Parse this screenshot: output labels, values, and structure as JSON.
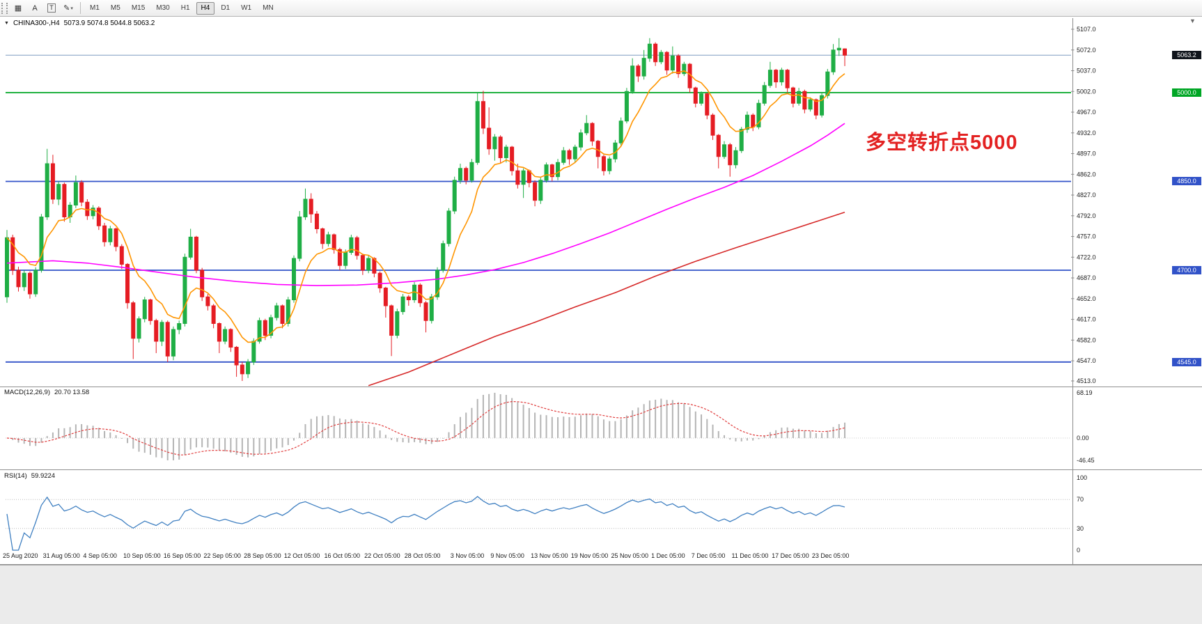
{
  "toolbar": {
    "tools": [
      {
        "name": "chart-grid-icon",
        "glyph": "▦"
      },
      {
        "name": "cursor-tool-icon",
        "glyph": "A"
      },
      {
        "name": "text-tool-icon",
        "glyph": "T",
        "boxed": true
      },
      {
        "name": "draw-tool-icon",
        "glyph": "✎",
        "caret": "▾"
      }
    ],
    "timeframes": [
      "M1",
      "M5",
      "M15",
      "M30",
      "H1",
      "H4",
      "D1",
      "W1",
      "MN"
    ],
    "active_timeframe": "H4"
  },
  "chart": {
    "collapse_icon": "▼",
    "symbol_period": "CHINA300-,H4",
    "ohlc_readout": "5073.9 5074.8 5044.8 5063.2",
    "annotation_text": "多空转折点5000",
    "current_price_label": "5063.2",
    "shift_marker": "▼"
  },
  "macd_panel": {
    "label": "MACD(12,26,9)",
    "values": "20.70 13.58",
    "tick_labels": [
      "68.19",
      "0.00",
      "-46.45"
    ]
  },
  "rsi_panel": {
    "label": "RSI(14)",
    "value": "59.9224",
    "tick_labels": [
      "100",
      "70",
      "30",
      "0"
    ]
  },
  "chart_data": {
    "type": "candlestick",
    "symbol": "CHINA300-",
    "timeframe": "H4",
    "title": "CHINA300-,H4 5073.9 5074.8 5044.8 5063.2",
    "price_axis": {
      "min": 4513,
      "max": 5107,
      "tick_step": 35
    },
    "y_tick_labels": [
      "5107.0",
      "5072.0",
      "5037.0",
      "5002.0",
      "4967.0",
      "4932.0",
      "4897.0",
      "4862.0",
      "4827.0",
      "4792.0",
      "4757.0",
      "4722.0",
      "4687.0",
      "4652.0",
      "4617.0",
      "4582.0",
      "4547.0",
      "4513.0"
    ],
    "x_labels": [
      "25 Aug 2020",
      "31 Aug 05:00",
      "4 Sep 05:00",
      "10 Sep 05:00",
      "16 Sep 05:00",
      "22 Sep 05:00",
      "28 Sep 05:00",
      "12 Oct 05:00",
      "16 Oct 05:00",
      "22 Oct 05:00",
      "28 Oct 05:00",
      "3 Nov 05:00",
      "9 Nov 05:00",
      "13 Nov 05:00",
      "19 Nov 05:00",
      "25 Nov 05:00",
      "1 Dec 05:00",
      "7 Dec 05:00",
      "11 Dec 05:00",
      "17 Dec 05:00",
      "23 Dec 05:00"
    ],
    "x_label_indices": [
      0,
      7,
      14,
      21,
      28,
      35,
      42,
      49,
      56,
      63,
      70,
      78,
      85,
      92,
      99,
      106,
      113,
      120,
      127,
      134,
      141
    ],
    "current_price": 5063.2,
    "levels": [
      {
        "price": 5000.0,
        "label": "5000.0",
        "color": "#00a625"
      },
      {
        "price": 4850.0,
        "label": "4850.0",
        "color": "#3152c8"
      },
      {
        "price": 4700.0,
        "label": "4700.0",
        "color": "#3152c8"
      },
      {
        "price": 4545.0,
        "label": "4545.0",
        "color": "#3152c8"
      }
    ],
    "candle_up_color": "#1fae45",
    "candle_down_color": "#e51c23",
    "current_price_line_color": "#7e9cc0",
    "current_price_badge_color": "#10151c",
    "ohlc": [
      [
        4655,
        4768,
        4645,
        4755
      ],
      [
        4755,
        4760,
        4692,
        4700
      ],
      [
        4700,
        4706,
        4664,
        4672
      ],
      [
        4672,
        4700,
        4665,
        4695
      ],
      [
        4695,
        4698,
        4652,
        4660
      ],
      [
        4660,
        4705,
        4655,
        4700
      ],
      [
        4700,
        4795,
        4696,
        4790
      ],
      [
        4790,
        4905,
        4785,
        4880
      ],
      [
        4880,
        4895,
        4812,
        4820
      ],
      [
        4820,
        4850,
        4810,
        4845
      ],
      [
        4845,
        4848,
        4782,
        4790
      ],
      [
        4790,
        4815,
        4780,
        4810
      ],
      [
        4810,
        4860,
        4805,
        4848
      ],
      [
        4848,
        4852,
        4808,
        4815
      ],
      [
        4815,
        4820,
        4785,
        4792
      ],
      [
        4792,
        4810,
        4786,
        4805
      ],
      [
        4805,
        4808,
        4768,
        4775
      ],
      [
        4775,
        4780,
        4740,
        4748
      ],
      [
        4748,
        4775,
        4742,
        4770
      ],
      [
        4770,
        4772,
        4732,
        4740
      ],
      [
        4740,
        4744,
        4702,
        4710
      ],
      [
        4710,
        4712,
        4635,
        4645
      ],
      [
        4645,
        4648,
        4550,
        4585
      ],
      [
        4585,
        4622,
        4578,
        4618
      ],
      [
        4618,
        4655,
        4612,
        4650
      ],
      [
        4650,
        4652,
        4608,
        4615
      ],
      [
        4615,
        4618,
        4560,
        4580
      ],
      [
        4580,
        4616,
        4572,
        4612
      ],
      [
        4612,
        4615,
        4545,
        4555
      ],
      [
        4555,
        4605,
        4548,
        4600
      ],
      [
        4600,
        4615,
        4592,
        4610
      ],
      [
        4610,
        4728,
        4605,
        4722
      ],
      [
        4722,
        4770,
        4718,
        4756
      ],
      [
        4756,
        4758,
        4695,
        4700
      ],
      [
        4700,
        4704,
        4648,
        4655
      ],
      [
        4655,
        4660,
        4632,
        4640
      ],
      [
        4640,
        4643,
        4602,
        4610
      ],
      [
        4610,
        4612,
        4560,
        4580
      ],
      [
        4580,
        4605,
        4575,
        4600
      ],
      [
        4600,
        4602,
        4562,
        4570
      ],
      [
        4570,
        4572,
        4520,
        4540
      ],
      [
        4540,
        4545,
        4513,
        4525
      ],
      [
        4525,
        4550,
        4518,
        4545
      ],
      [
        4545,
        4585,
        4540,
        4580
      ],
      [
        4580,
        4620,
        4576,
        4615
      ],
      [
        4615,
        4618,
        4582,
        4590
      ],
      [
        4590,
        4625,
        4585,
        4620
      ],
      [
        4620,
        4645,
        4615,
        4640
      ],
      [
        4640,
        4642,
        4602,
        4610
      ],
      [
        4610,
        4655,
        4605,
        4650
      ],
      [
        4650,
        4725,
        4645,
        4720
      ],
      [
        4720,
        4800,
        4715,
        4790
      ],
      [
        4790,
        4838,
        4785,
        4820
      ],
      [
        4820,
        4830,
        4780,
        4795
      ],
      [
        4795,
        4800,
        4762,
        4770
      ],
      [
        4770,
        4772,
        4736,
        4745
      ],
      [
        4745,
        4765,
        4740,
        4760
      ],
      [
        4760,
        4762,
        4728,
        4735
      ],
      [
        4735,
        4738,
        4700,
        4708
      ],
      [
        4708,
        4735,
        4702,
        4730
      ],
      [
        4730,
        4760,
        4726,
        4755
      ],
      [
        4755,
        4758,
        4718,
        4725
      ],
      [
        4725,
        4728,
        4692,
        4700
      ],
      [
        4700,
        4725,
        4695,
        4720
      ],
      [
        4720,
        4722,
        4688,
        4695
      ],
      [
        4695,
        4698,
        4662,
        4670
      ],
      [
        4670,
        4672,
        4620,
        4640
      ],
      [
        4640,
        4642,
        4555,
        4590
      ],
      [
        4590,
        4635,
        4585,
        4630
      ],
      [
        4630,
        4660,
        4625,
        4655
      ],
      [
        4655,
        4658,
        4640,
        4650
      ],
      [
        4650,
        4680,
        4645,
        4675
      ],
      [
        4675,
        4678,
        4638,
        4645
      ],
      [
        4645,
        4648,
        4595,
        4615
      ],
      [
        4615,
        4660,
        4610,
        4655
      ],
      [
        4655,
        4705,
        4650,
        4700
      ],
      [
        4700,
        4750,
        4696,
        4745
      ],
      [
        4745,
        4805,
        4740,
        4800
      ],
      [
        4800,
        4858,
        4795,
        4852
      ],
      [
        4852,
        4880,
        4846,
        4872
      ],
      [
        4872,
        4875,
        4845,
        4852
      ],
      [
        4852,
        4888,
        4848,
        4882
      ],
      [
        4882,
        5000,
        4878,
        4985
      ],
      [
        4985,
        5003,
        4930,
        4940
      ],
      [
        4940,
        4975,
        4895,
        4905
      ],
      [
        4905,
        4930,
        4885,
        4925
      ],
      [
        4925,
        4928,
        4880,
        4890
      ],
      [
        4890,
        4912,
        4882,
        4908
      ],
      [
        4908,
        4910,
        4860,
        4868
      ],
      [
        4868,
        4880,
        4838,
        4845
      ],
      [
        4845,
        4872,
        4822,
        4868
      ],
      [
        4868,
        4870,
        4840,
        4848
      ],
      [
        4848,
        4852,
        4808,
        4818
      ],
      [
        4818,
        4858,
        4812,
        4852
      ],
      [
        4852,
        4882,
        4848,
        4878
      ],
      [
        4878,
        4880,
        4850,
        4858
      ],
      [
        4858,
        4888,
        4852,
        4882
      ],
      [
        4882,
        4908,
        4878,
        4902
      ],
      [
        4902,
        4905,
        4878,
        4888
      ],
      [
        4888,
        4912,
        4882,
        4908
      ],
      [
        4908,
        4938,
        4902,
        4932
      ],
      [
        4932,
        4962,
        4928,
        4948
      ],
      [
        4948,
        4950,
        4910,
        4918
      ],
      [
        4918,
        4920,
        4872,
        4892
      ],
      [
        4892,
        4895,
        4860,
        4868
      ],
      [
        4868,
        4892,
        4862,
        4888
      ],
      [
        4888,
        4920,
        4882,
        4915
      ],
      [
        4915,
        4958,
        4910,
        4952
      ],
      [
        4952,
        5008,
        4948,
        5002
      ],
      [
        5002,
        5058,
        4998,
        5045
      ],
      [
        5045,
        5048,
        5018,
        5028
      ],
      [
        5028,
        5072,
        5022,
        5058
      ],
      [
        5058,
        5092,
        5052,
        5082
      ],
      [
        5082,
        5085,
        5045,
        5052
      ],
      [
        5052,
        5072,
        5048,
        5068
      ],
      [
        5068,
        5070,
        5030,
        5038
      ],
      [
        5038,
        5078,
        5032,
        5062
      ],
      [
        5062,
        5065,
        5025,
        5032
      ],
      [
        5032,
        5052,
        5028,
        5048
      ],
      [
        5048,
        5050,
        5000,
        5008
      ],
      [
        5008,
        5010,
        4975,
        4982
      ],
      [
        4982,
        5002,
        4978,
        4998
      ],
      [
        4998,
        5000,
        4955,
        4962
      ],
      [
        4962,
        4965,
        4920,
        4928
      ],
      [
        4928,
        4930,
        4872,
        4892
      ],
      [
        4892,
        4918,
        4888,
        4912
      ],
      [
        4912,
        4915,
        4858,
        4878
      ],
      [
        4878,
        4908,
        4872,
        4902
      ],
      [
        4902,
        4942,
        4898,
        4938
      ],
      [
        4938,
        4968,
        4932,
        4962
      ],
      [
        4962,
        4965,
        4935,
        4942
      ],
      [
        4942,
        4988,
        4938,
        4982
      ],
      [
        4982,
        5018,
        4978,
        5012
      ],
      [
        5012,
        5052,
        5008,
        5038
      ],
      [
        5038,
        5040,
        5008,
        5018
      ],
      [
        5018,
        5042,
        5012,
        5038
      ],
      [
        5038,
        5040,
        5000,
        5008
      ],
      [
        5008,
        5010,
        4975,
        4982
      ],
      [
        4982,
        5008,
        4978,
        5002
      ],
      [
        5002,
        5005,
        4965,
        4972
      ],
      [
        4972,
        4992,
        4968,
        4988
      ],
      [
        4988,
        4990,
        4955,
        4962
      ],
      [
        4962,
        5000,
        4958,
        4995
      ],
      [
        4995,
        5040,
        4990,
        5035
      ],
      [
        5035,
        5082,
        5030,
        5072
      ],
      [
        5072,
        5092,
        5062,
        5075
      ],
      [
        5073.9,
        5074.8,
        5044.8,
        5063.2
      ]
    ],
    "ma_fast": {
      "type": "ema",
      "period": 9,
      "color": "#ff9500"
    },
    "ma_medium": {
      "color": "#ff00ff",
      "points": [
        [
          0,
          4712
        ],
        [
          8,
          4716
        ],
        [
          14,
          4712
        ],
        [
          20,
          4705
        ],
        [
          26,
          4697
        ],
        [
          33,
          4688
        ],
        [
          40,
          4681
        ],
        [
          47,
          4676
        ],
        [
          54,
          4674
        ],
        [
          61,
          4675
        ],
        [
          68,
          4679
        ],
        [
          75,
          4685
        ],
        [
          80,
          4692
        ],
        [
          85,
          4701
        ],
        [
          90,
          4713
        ],
        [
          95,
          4728
        ],
        [
          100,
          4745
        ],
        [
          105,
          4763
        ],
        [
          110,
          4783
        ],
        [
          115,
          4803
        ],
        [
          120,
          4822
        ],
        [
          125,
          4840
        ],
        [
          130,
          4860
        ],
        [
          135,
          4884
        ],
        [
          140,
          4910
        ],
        [
          143,
          4928
        ],
        [
          146,
          4948
        ]
      ]
    },
    "ma_slow": {
      "color": "#d62828",
      "points": [
        [
          63,
          4505
        ],
        [
          70,
          4528
        ],
        [
          78,
          4560
        ],
        [
          85,
          4588
        ],
        [
          92,
          4612
        ],
        [
          99,
          4638
        ],
        [
          106,
          4662
        ],
        [
          113,
          4690
        ],
        [
          120,
          4715
        ],
        [
          127,
          4738
        ],
        [
          134,
          4760
        ],
        [
          141,
          4782
        ],
        [
          146,
          4798
        ]
      ]
    },
    "macd": {
      "fast": 12,
      "slow": 26,
      "signal": 9,
      "hist_color": "#b4b4b4",
      "signal_color": "#e03c3c",
      "current_hist": 20.7,
      "current_signal": 13.58,
      "axis_max": 68.19,
      "axis_min": -46.45
    },
    "rsi": {
      "period": 14,
      "color": "#3e7fc1",
      "current": 59.9224,
      "levels": [
        70,
        30
      ],
      "axis": [
        0,
        100
      ]
    }
  }
}
